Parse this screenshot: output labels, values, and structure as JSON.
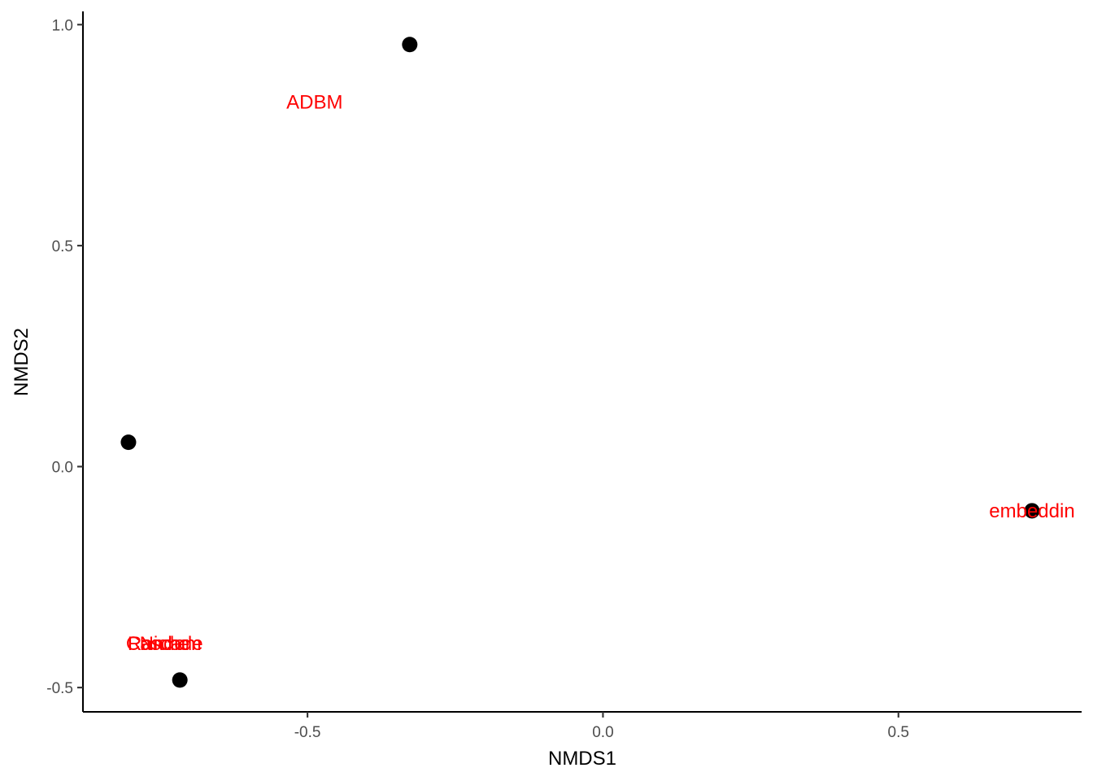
{
  "chart_data": {
    "type": "scatter",
    "title": "",
    "xlabel": "NMDS1",
    "ylabel": "NMDS2",
    "xlim": [
      -0.88,
      0.81
    ],
    "ylim": [
      -0.555,
      1.03
    ],
    "x_ticks": [
      -0.5,
      0.0,
      0.5
    ],
    "x_tick_labels": [
      "-0.5",
      "0.0",
      "0.5"
    ],
    "y_ticks": [
      -0.5,
      0.0,
      0.5,
      1.0
    ],
    "y_tick_labels": [
      "-0.5",
      "0.0",
      "0.5",
      "1.0"
    ],
    "grid": false,
    "point_color": "#000000",
    "label_color": "#ff0000",
    "points": [
      {
        "x": -0.327,
        "y": 0.955
      },
      {
        "x": -0.803,
        "y": 0.055
      },
      {
        "x": -0.716,
        "y": -0.483
      },
      {
        "x": 0.726,
        "y": -0.1
      }
    ],
    "text_labels": [
      {
        "text": "ADBM",
        "x": -0.488,
        "y": 0.825
      },
      {
        "text": "embeddin",
        "x": 0.726,
        "y": -0.1
      },
      {
        "text": "Cascade",
        "x": -0.742,
        "y": -0.4
      },
      {
        "text": "Niche",
        "x": -0.742,
        "y": -0.4
      },
      {
        "text": "Random",
        "x": -0.742,
        "y": -0.4
      }
    ]
  }
}
